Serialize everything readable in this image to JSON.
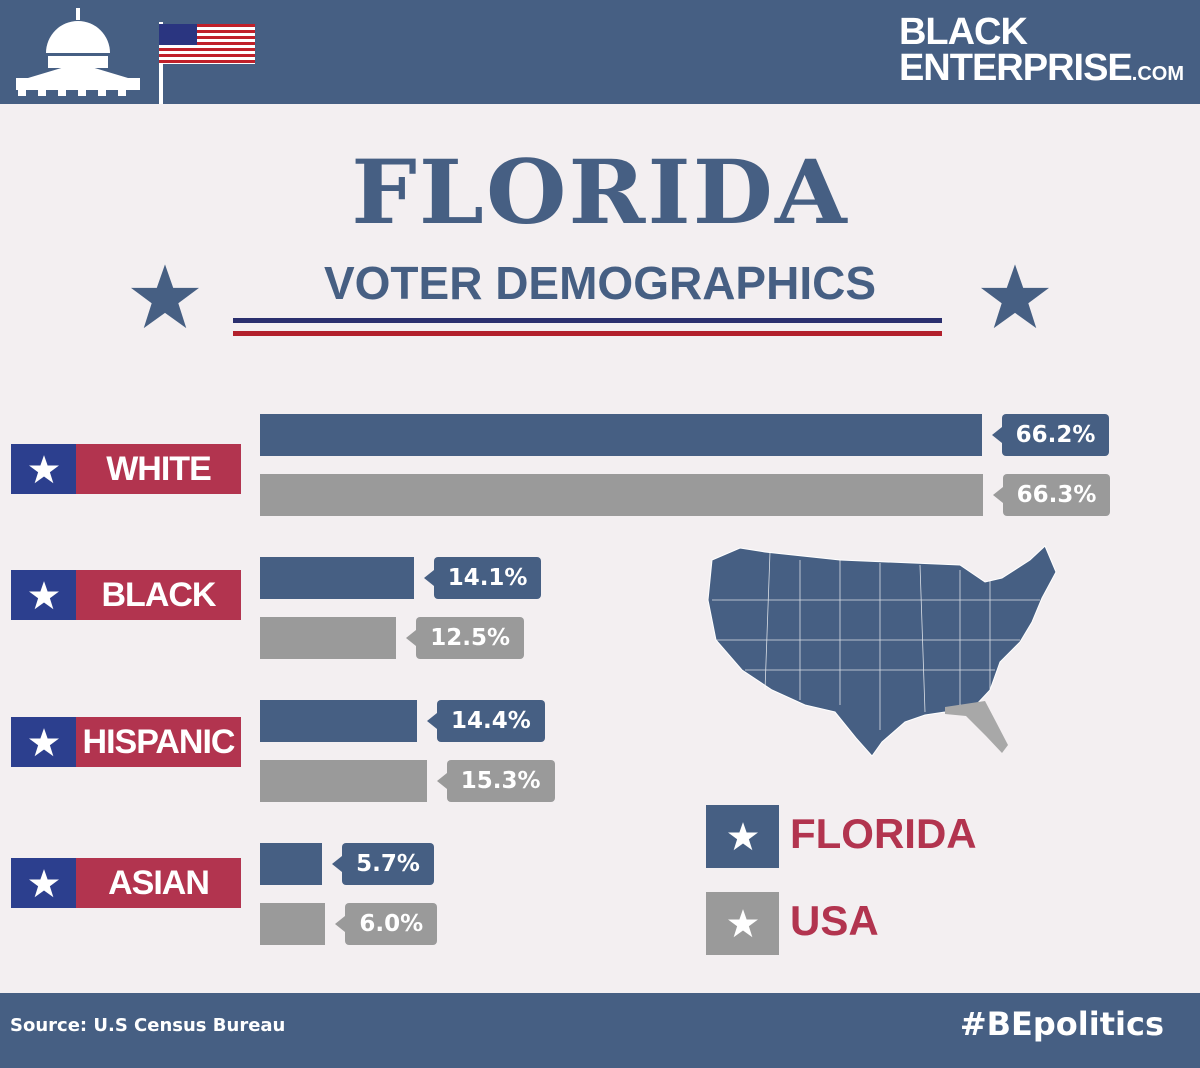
{
  "header": {
    "logo_line1": "BLACK",
    "logo_line2": "ENTERPRISE",
    "logo_suffix": ".COM"
  },
  "title": "FLORIDA",
  "subtitle": "VOTER DEMOGRAPHICS",
  "colors": {
    "navy": "#465f83",
    "red": "#b2344f",
    "blue": "#2c3f8e",
    "gray": "#9a9a9a"
  },
  "chart_data": {
    "type": "bar",
    "orientation": "horizontal",
    "categories": [
      "WHITE",
      "BLACK",
      "HISPANIC",
      "ASIAN"
    ],
    "series": [
      {
        "name": "FLORIDA",
        "color": "#465f83",
        "values": [
          66.2,
          14.1,
          14.4,
          5.7
        ],
        "labels": [
          "66.2%",
          "14.1%",
          "14.4%",
          "5.7%"
        ]
      },
      {
        "name": "USA",
        "color": "#9a9a9a",
        "values": [
          66.3,
          12.5,
          15.3,
          6.0
        ],
        "labels": [
          "66.3%",
          "12.5%",
          "15.3%",
          "6.0%"
        ]
      }
    ],
    "legend": [
      "FLORIDA",
      "USA"
    ],
    "legend_placement": "bottom-right",
    "grid": false
  },
  "footer": {
    "source": "Source: U.S Census Bureau",
    "hashtag": "#BEpolitics"
  }
}
